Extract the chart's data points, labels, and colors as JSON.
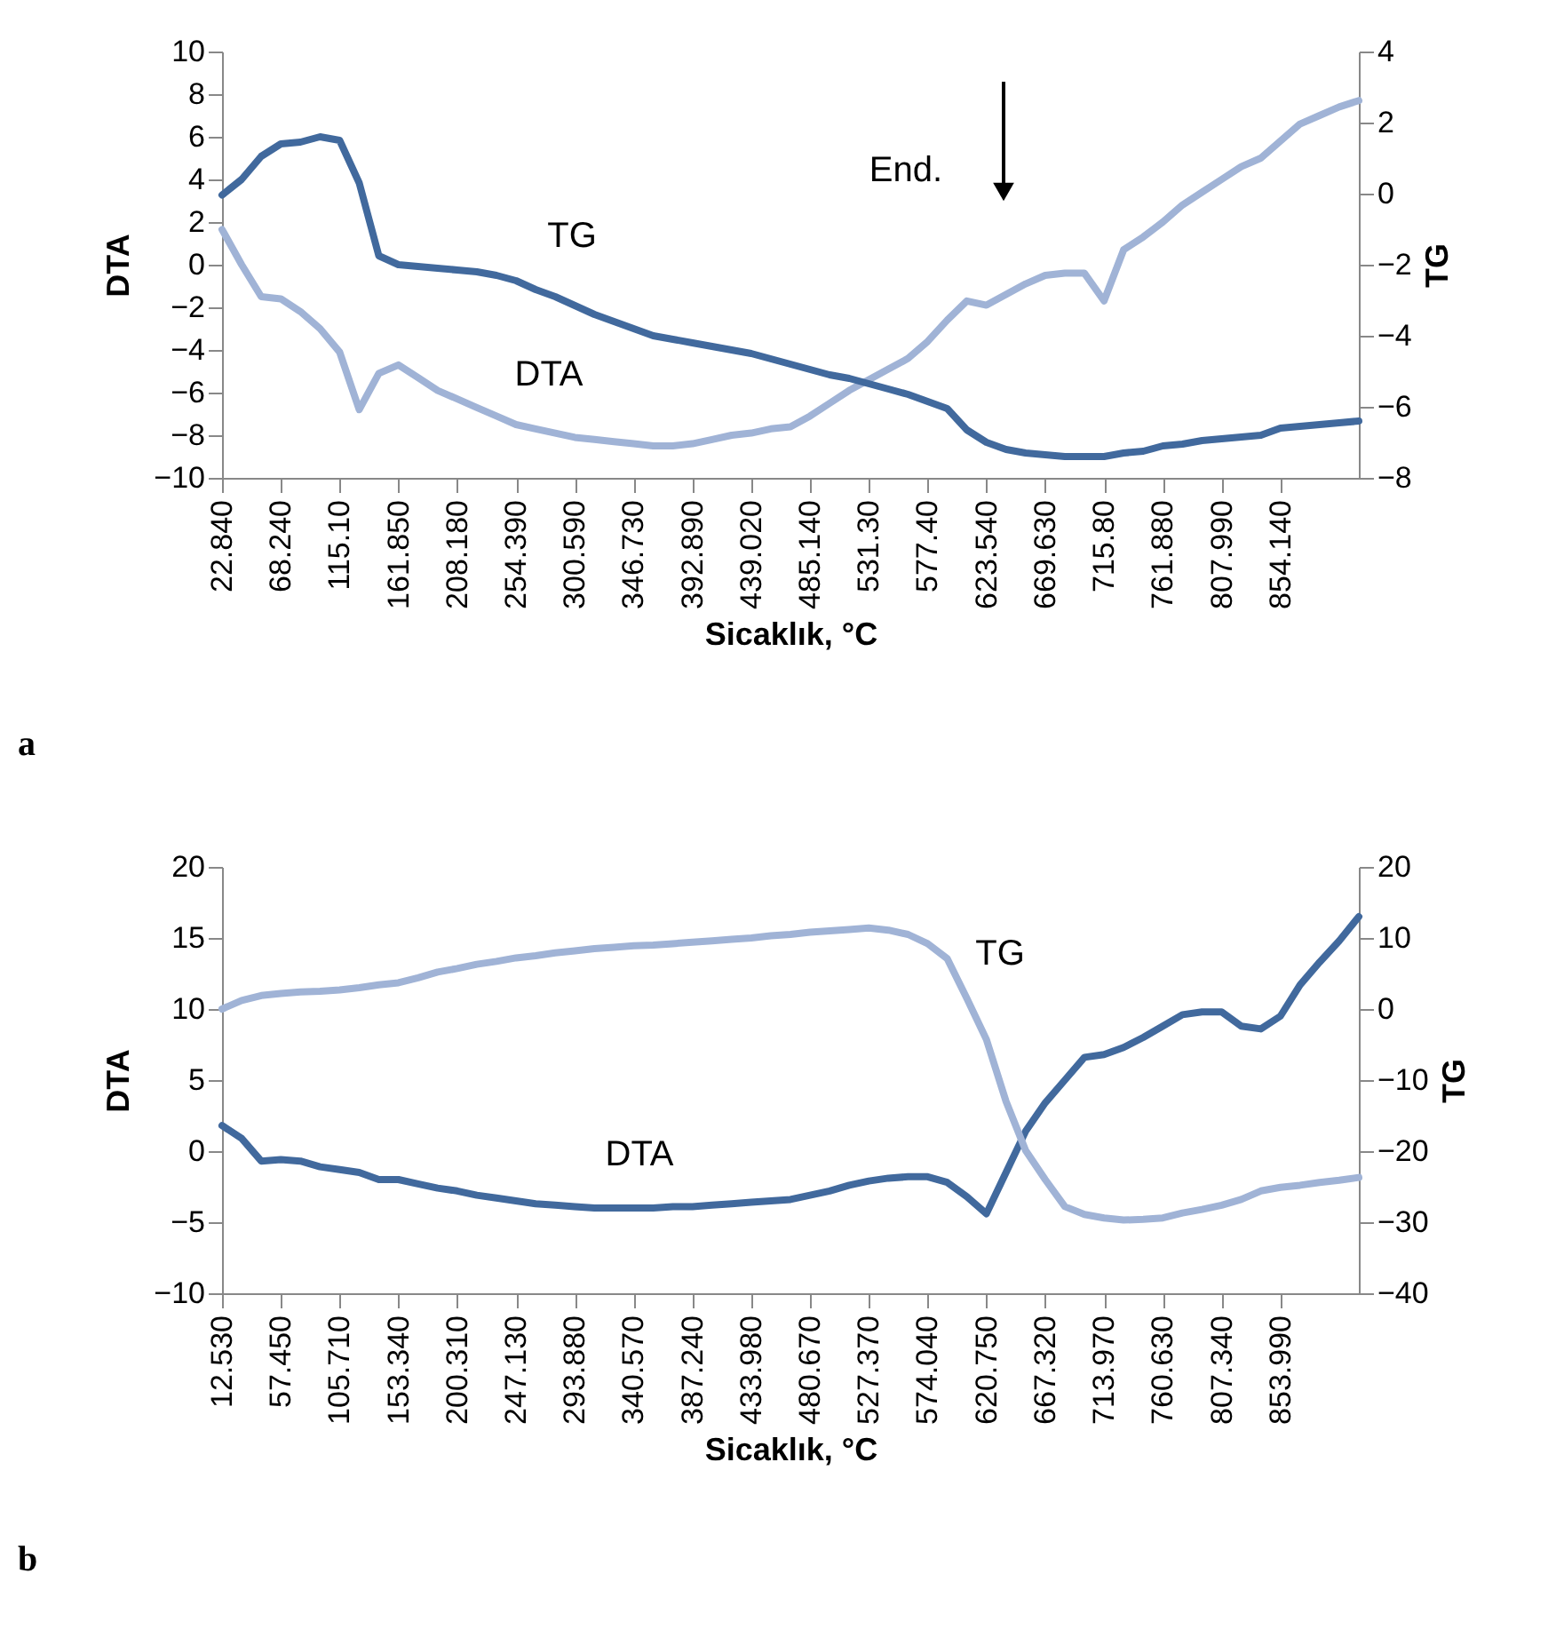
{
  "chart_data": [
    {
      "type": "line",
      "xlabel": "Sicaklık, °C",
      "ylabel": "DTA",
      "y2label": "TG",
      "categories": [
        "22.840",
        null,
        null,
        "68.240",
        null,
        null,
        "115.10",
        null,
        null,
        "161.850",
        null,
        null,
        "208.180",
        null,
        null,
        "254.390",
        null,
        null,
        "300.590",
        null,
        null,
        "346.730",
        null,
        null,
        "392.890",
        null,
        null,
        "439.020",
        null,
        null,
        "485.140",
        null,
        null,
        "531.30",
        null,
        null,
        "577.40",
        null,
        null,
        "623.540",
        null,
        null,
        "669.630",
        null,
        null,
        "715.80",
        null,
        null,
        "761.880",
        null,
        null,
        "807.990",
        null,
        null,
        "854.140",
        null,
        null,
        null,
        null
      ],
      "series": [
        {
          "name": "DTA",
          "color": "#a0b3d6",
          "values": [
            1.65,
            0.0,
            -1.5,
            -1.6,
            -2.2,
            -3.0,
            -4.1,
            -6.8,
            -5.1,
            -4.7,
            -5.3,
            -5.9,
            -6.3,
            -6.7,
            -7.1,
            -7.5,
            -7.7,
            -7.9,
            -8.1,
            -8.2,
            -8.3,
            -8.4,
            -8.5,
            -8.5,
            -8.4,
            -8.2,
            -8.0,
            -7.9,
            -7.7,
            -7.6,
            -7.1,
            -6.5,
            -5.9,
            -5.4,
            -4.9,
            -4.4,
            -3.6,
            -2.6,
            -1.7,
            -1.9,
            -1.4,
            -0.9,
            -0.5,
            -0.4,
            -0.4,
            -1.7,
            0.7,
            1.3,
            2.0,
            2.8,
            3.4,
            4.0,
            4.6,
            5.0,
            5.8,
            6.6,
            7.0,
            7.4,
            7.7
          ]
        },
        {
          "name": "TG",
          "color": "#41699d",
          "axis": "y2",
          "values": [
            -0.04,
            0.4,
            1.05,
            1.4,
            1.45,
            1.6,
            1.5,
            0.3,
            -1.75,
            -2.0,
            -2.05,
            -2.1,
            -2.15,
            -2.2,
            -2.3,
            -2.45,
            -2.7,
            -2.9,
            -3.15,
            -3.4,
            -3.6,
            -3.8,
            -4.0,
            -4.1,
            -4.2,
            -4.3,
            -4.4,
            -4.5,
            -4.65,
            -4.8,
            -4.95,
            -5.1,
            -5.2,
            -5.35,
            -5.5,
            -5.65,
            -5.85,
            -6.05,
            -6.65,
            -7.0,
            -7.2,
            -7.3,
            -7.35,
            -7.4,
            -7.4,
            -7.4,
            -7.3,
            -7.25,
            -7.1,
            -7.05,
            -6.95,
            -6.9,
            -6.85,
            -6.8,
            -6.6,
            -6.55,
            -6.5,
            -6.45,
            -6.4
          ]
        }
      ],
      "ylim": [
        -10,
        10
      ],
      "yticks": [
        -10,
        -8,
        -6,
        -4,
        -2,
        0,
        2,
        4,
        6,
        8,
        10
      ],
      "y2lim": [
        -8,
        4
      ],
      "y2ticks": [
        -8,
        -6,
        -4,
        -2,
        0,
        2,
        4
      ],
      "annotations": [
        "End.",
        "a"
      ]
    },
    {
      "type": "line",
      "xlabel": "Sicaklık, °C",
      "ylabel": "DTA",
      "y2label": "TG",
      "categories": [
        "12.530",
        null,
        null,
        "57.450",
        null,
        null,
        "105.710",
        null,
        null,
        "153.340",
        null,
        null,
        "200.310",
        null,
        null,
        "247.130",
        null,
        null,
        "293.880",
        null,
        null,
        "340.570",
        null,
        null,
        "387.240",
        null,
        null,
        "433.980",
        null,
        null,
        "480.670",
        null,
        null,
        "527.370",
        null,
        null,
        "574.040",
        null,
        null,
        "620.750",
        null,
        null,
        "667.320",
        null,
        null,
        "713.970",
        null,
        null,
        "760.630",
        null,
        null,
        "807.340",
        null,
        null,
        "853.990",
        null,
        null,
        null,
        null
      ],
      "series": [
        {
          "name": "DTA",
          "color": "#41699d",
          "values": [
            1.8,
            0.9,
            -0.7,
            -0.6,
            -0.7,
            -1.1,
            -1.3,
            -1.5,
            -2.0,
            -2.0,
            -2.3,
            -2.6,
            -2.8,
            -3.1,
            -3.3,
            -3.5,
            -3.7,
            -3.8,
            -3.9,
            -4.0,
            -4.0,
            -4.0,
            -4.0,
            -3.9,
            -3.9,
            -3.8,
            -3.7,
            -3.6,
            -3.5,
            -3.4,
            -3.1,
            -2.8,
            -2.4,
            -2.1,
            -1.9,
            -1.8,
            -1.8,
            -2.2,
            -3.2,
            -4.4,
            -1.5,
            1.4,
            3.4,
            5.0,
            6.6,
            6.8,
            7.3,
            8.0,
            8.8,
            9.6,
            9.8,
            9.8,
            8.8,
            8.6,
            9.5,
            11.7,
            13.3,
            14.8,
            16.5
          ]
        },
        {
          "name": "TG",
          "color": "#a0b3d6",
          "axis": "y2",
          "values": [
            0.0,
            1.2,
            1.9,
            2.2,
            2.4,
            2.5,
            2.7,
            3.0,
            3.4,
            3.7,
            4.4,
            5.2,
            5.7,
            6.3,
            6.7,
            7.2,
            7.5,
            7.9,
            8.2,
            8.5,
            8.7,
            8.9,
            9.0,
            9.2,
            9.4,
            9.6,
            9.8,
            10.0,
            10.3,
            10.5,
            10.8,
            11.0,
            11.2,
            11.4,
            11.1,
            10.5,
            9.2,
            7.1,
            1.5,
            -4.3,
            -13.0,
            -19.9,
            -24.0,
            -27.8,
            -28.9,
            -29.4,
            -29.7,
            -29.6,
            -29.4,
            -28.7,
            -28.2,
            -27.6,
            -26.8,
            -25.6,
            -25.1,
            -24.8,
            -24.4,
            -24.1,
            -23.7
          ]
        }
      ],
      "ylim": [
        -10,
        20
      ],
      "yticks": [
        -10,
        -5,
        0,
        5,
        10,
        15,
        20
      ],
      "y2lim": [
        -40,
        20
      ],
      "y2ticks": [
        -40,
        -30,
        -20,
        -10,
        0,
        10,
        20
      ],
      "annotations": [
        "b"
      ]
    }
  ]
}
